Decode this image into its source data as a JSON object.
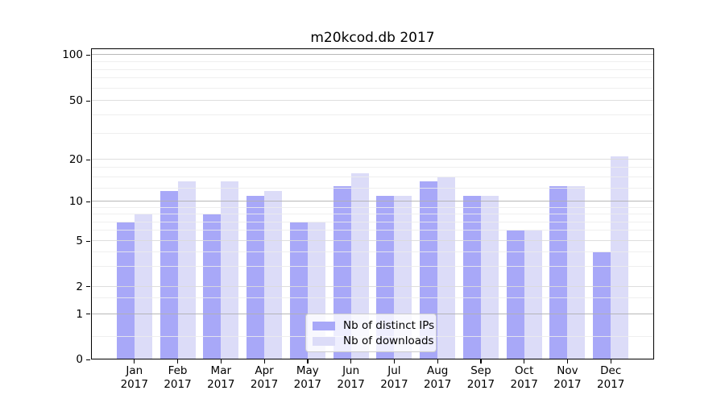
{
  "title": "m20kcod.db 2017",
  "chart_data": {
    "type": "bar",
    "title": "m20kcod.db 2017",
    "categories": [
      "Jan",
      "Feb",
      "Mar",
      "Apr",
      "May",
      "Jun",
      "Jul",
      "Aug",
      "Sep",
      "Oct",
      "Nov",
      "Dec"
    ],
    "category_year": "2017",
    "series": [
      {
        "name": "Nb of distinct IPs",
        "color": "#a8a8f8",
        "values": [
          7,
          12,
          8,
          11,
          7,
          13,
          11,
          14,
          11,
          6,
          13,
          4
        ]
      },
      {
        "name": "Nb of downloads",
        "color": "#dcdcf8",
        "values": [
          8,
          14,
          14,
          12,
          7,
          16,
          11,
          15,
          11,
          6,
          13,
          21
        ]
      }
    ],
    "xlabel": "",
    "ylabel": "",
    "y_axis": {
      "scale": "log-like (0,1,2,5,10,20,50,100)",
      "tick_values": [
        0,
        1,
        2,
        5,
        10,
        20,
        50,
        100
      ],
      "tick_labels": [
        "0",
        "1",
        "2",
        "5",
        "10",
        "20",
        "50",
        "100"
      ],
      "ylim": [
        0,
        110
      ]
    },
    "grid": "on (major dark at 1/10/100, light at 2/5/20/50, faint minors)",
    "legend_position": "inside plot, bottom center"
  },
  "colors": {
    "bar_ips": "#a8a8f8",
    "bar_downloads": "#dcdcf8",
    "grid_strong": "#b0b0b0",
    "grid_mid": "#dadada",
    "grid_minor": "#ececec",
    "axis": "#000000",
    "legend_border": "#cccccc"
  }
}
